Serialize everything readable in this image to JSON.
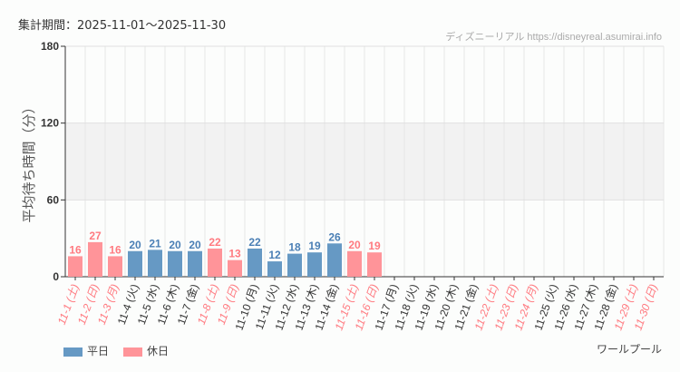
{
  "header": {
    "period": "集計期間：2025-11-01～2025-11-30",
    "credit": "ディズニーリアル https://disneyreal.asumirai.info",
    "attraction": "ワールプール"
  },
  "legend": [
    {
      "label": "平日",
      "color": "#6699c4"
    },
    {
      "label": "休日",
      "color": "#ff9499"
    }
  ],
  "chart_data": {
    "type": "bar",
    "ylabel": "平均待ち時間（分）",
    "ylim": [
      0,
      180
    ],
    "yticks": [
      0,
      60,
      120,
      180
    ],
    "categories": [
      "11-1 (土)",
      "11-2 (日)",
      "11-3 (月)",
      "11-4 (火)",
      "11-5 (水)",
      "11-6 (木)",
      "11-7 (金)",
      "11-8 (土)",
      "11-9 (日)",
      "11-10 (月)",
      "11-11 (火)",
      "11-12 (水)",
      "11-13 (木)",
      "11-14 (金)",
      "11-15 (土)",
      "11-16 (日)",
      "11-17 (月)",
      "11-18 (火)",
      "11-19 (水)",
      "11-20 (木)",
      "11-21 (金)",
      "11-22 (土)",
      "11-23 (日)",
      "11-24 (月)",
      "11-25 (火)",
      "11-26 (水)",
      "11-27 (木)",
      "11-28 (金)",
      "11-29 (土)",
      "11-30 (日)"
    ],
    "holiday": [
      1,
      1,
      1,
      0,
      0,
      0,
      0,
      1,
      1,
      0,
      0,
      0,
      0,
      0,
      1,
      1,
      0,
      0,
      0,
      0,
      0,
      1,
      1,
      1,
      0,
      0,
      0,
      0,
      1,
      1
    ],
    "values": [
      16,
      27,
      16,
      20,
      21,
      20,
      20,
      22,
      13,
      22,
      12,
      18,
      19,
      26,
      20,
      19,
      null,
      null,
      null,
      null,
      null,
      null,
      null,
      null,
      null,
      null,
      null,
      null,
      null,
      null
    ]
  }
}
